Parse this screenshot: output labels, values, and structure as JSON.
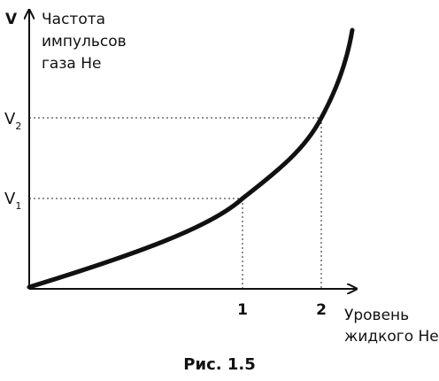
{
  "figure": {
    "y_axis_symbol": "V",
    "y_axis_label_lines": [
      "Частота",
      "импульсов",
      "газа He"
    ],
    "x_axis_label_lines": [
      "Уровень",
      "жидкого He"
    ],
    "y_marks": [
      {
        "base": "V",
        "sub": "1"
      },
      {
        "base": "V",
        "sub": "2"
      }
    ],
    "x_marks": [
      "1",
      "2"
    ],
    "caption": "Рис. 1.5"
  }
}
